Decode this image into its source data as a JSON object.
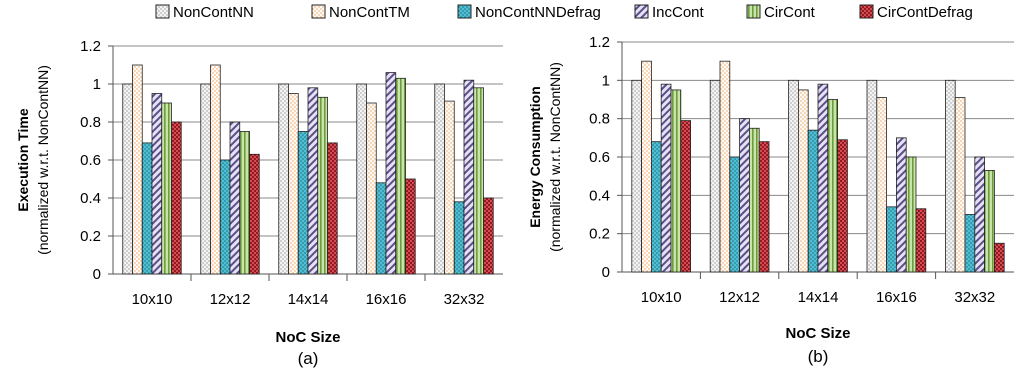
{
  "legend": [
    "NonContNN",
    "NonContTM",
    "NonContNNDefrag",
    "IncCont",
    "CirCont",
    "CirContDefrag"
  ],
  "series_styles": [
    {
      "name": "NonContNN",
      "fill": "#e8e8e8",
      "pattern": "checker-light"
    },
    {
      "name": "NonContTM",
      "fill": "#fff6ee",
      "pattern": "dots-orange"
    },
    {
      "name": "NonContNNDefrag",
      "fill": "#4bb7cc",
      "pattern": "dots-dark"
    },
    {
      "name": "IncCont",
      "fill": "#d8d4ec",
      "pattern": "diagonal-purple"
    },
    {
      "name": "CirCont",
      "fill": "#a7cf7e",
      "pattern": "vertical-green"
    },
    {
      "name": "CirContDefrag",
      "fill": "#c0303a",
      "pattern": "checker-red"
    }
  ],
  "chart_data": [
    {
      "type": "bar",
      "subtitle": "(a)",
      "xlabel": "NoC Size",
      "ylabel_bold": "Execution Time",
      "ylabel_sub": "(normalized w.r.t. NonContNN)",
      "ylim": [
        0,
        1.2
      ],
      "yticks": [
        "0",
        "0.2",
        "0.4",
        "0.6",
        "0.8",
        "1",
        "1.2"
      ],
      "ytick_values": [
        0,
        0.2,
        0.4,
        0.6,
        0.8,
        1.0,
        1.2
      ],
      "grid": true,
      "categories": [
        "10x10",
        "12x12",
        "14x14",
        "16x16",
        "32x32"
      ],
      "series": [
        {
          "name": "NonContNN",
          "values": [
            1.0,
            1.0,
            1.0,
            1.0,
            1.0
          ]
        },
        {
          "name": "NonContTM",
          "values": [
            1.1,
            1.1,
            0.95,
            0.9,
            0.91
          ]
        },
        {
          "name": "NonContNNDefrag",
          "values": [
            0.69,
            0.6,
            0.75,
            0.48,
            0.38
          ]
        },
        {
          "name": "IncCont",
          "values": [
            0.95,
            0.8,
            0.98,
            1.06,
            1.02
          ]
        },
        {
          "name": "CirCont",
          "values": [
            0.9,
            0.75,
            0.93,
            1.03,
            0.98
          ]
        },
        {
          "name": "CirContDefrag",
          "values": [
            0.8,
            0.63,
            0.69,
            0.5,
            0.4
          ]
        }
      ]
    },
    {
      "type": "bar",
      "subtitle": "(b)",
      "xlabel": "NoC Size",
      "ylabel_bold": "Energy Consumption",
      "ylabel_sub": "(normalized w.r.t. NonContNN)",
      "ylim": [
        0,
        1.2
      ],
      "yticks": [
        "0",
        "0.2",
        "0.4",
        "0.6",
        "0.8",
        "1",
        "1.2"
      ],
      "ytick_values": [
        0,
        0.2,
        0.4,
        0.6,
        0.8,
        1.0,
        1.2
      ],
      "grid": true,
      "categories": [
        "10x10",
        "12x12",
        "14x14",
        "16x16",
        "32x32"
      ],
      "series": [
        {
          "name": "NonContNN",
          "values": [
            1.0,
            1.0,
            1.0,
            1.0,
            1.0
          ]
        },
        {
          "name": "NonContTM",
          "values": [
            1.1,
            1.1,
            0.95,
            0.91,
            0.91
          ]
        },
        {
          "name": "NonContNNDefrag",
          "values": [
            0.68,
            0.6,
            0.74,
            0.34,
            0.3
          ]
        },
        {
          "name": "IncCont",
          "values": [
            0.98,
            0.8,
            0.98,
            0.7,
            0.6
          ]
        },
        {
          "name": "CirCont",
          "values": [
            0.95,
            0.75,
            0.9,
            0.6,
            0.53
          ]
        },
        {
          "name": "CirContDefrag",
          "values": [
            0.79,
            0.68,
            0.69,
            0.33,
            0.15
          ]
        }
      ]
    }
  ]
}
